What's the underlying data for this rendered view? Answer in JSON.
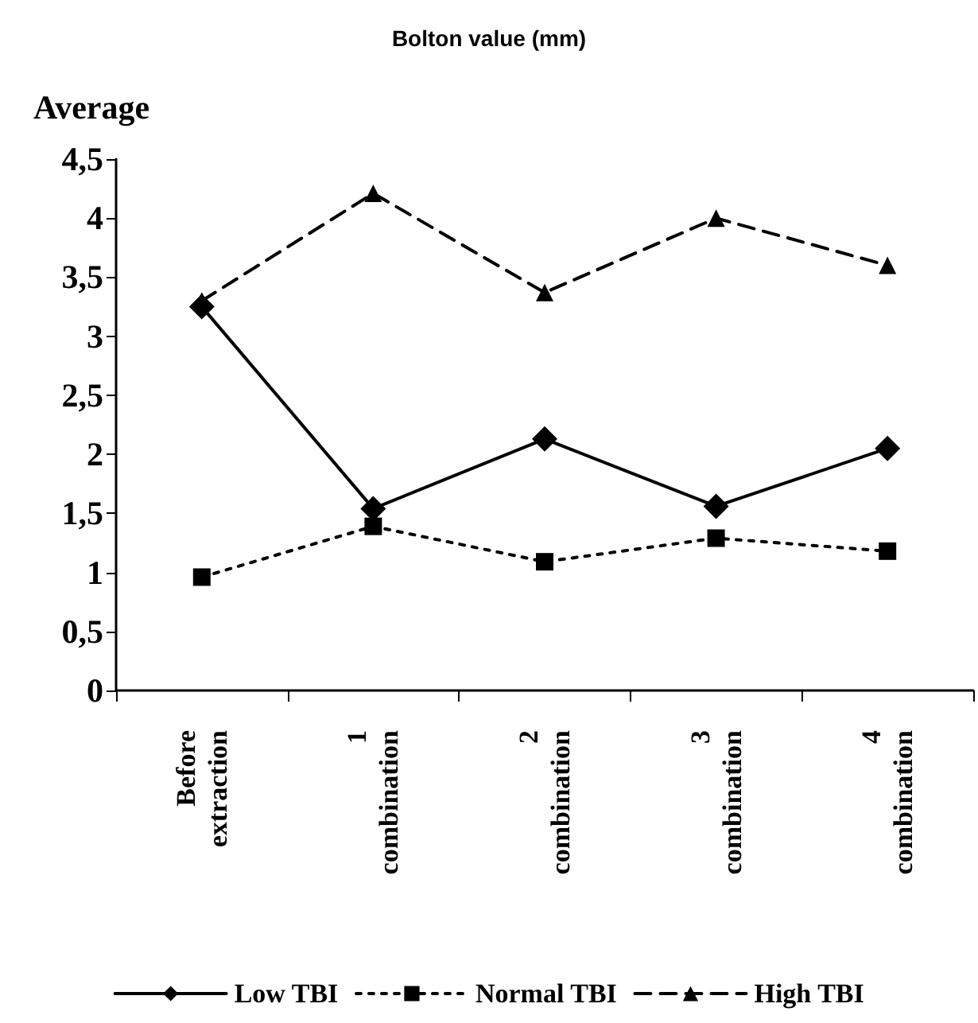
{
  "chart_data": {
    "type": "line",
    "title": "Bolton value (mm)",
    "ylabel": "Average",
    "categories": [
      "Before\nextraction",
      "1\ncombination",
      "2\ncombination",
      "3\ncombination",
      "4\ncombination"
    ],
    "series": [
      {
        "name": "Low TBI",
        "color": "#000000",
        "marker": "diamond",
        "line_style": "solid",
        "values": [
          3.25,
          1.54,
          2.13,
          1.56,
          2.05
        ]
      },
      {
        "name": "Normal TBI",
        "color": "#000000",
        "marker": "square",
        "line_style": "dotted",
        "values": [
          0.96,
          1.39,
          1.09,
          1.29,
          1.18
        ]
      },
      {
        "name": "High TBI",
        "color": "#000000",
        "marker": "triangle",
        "line_style": "dashed",
        "values": [
          3.3,
          4.21,
          3.37,
          4.0,
          3.6
        ]
      }
    ],
    "ylim": [
      0,
      4.5
    ],
    "yticks": [
      0,
      {
        "value": 0.5,
        "label": "0,5"
      },
      1,
      {
        "value": 1.5,
        "label": "1,5"
      },
      2,
      {
        "value": 2.5,
        "label": "2,5"
      },
      3,
      {
        "value": 3.5,
        "label": "3,5"
      },
      4,
      {
        "value": 4.5,
        "label": "4,5"
      }
    ],
    "grid": false,
    "legend": "bottom"
  }
}
